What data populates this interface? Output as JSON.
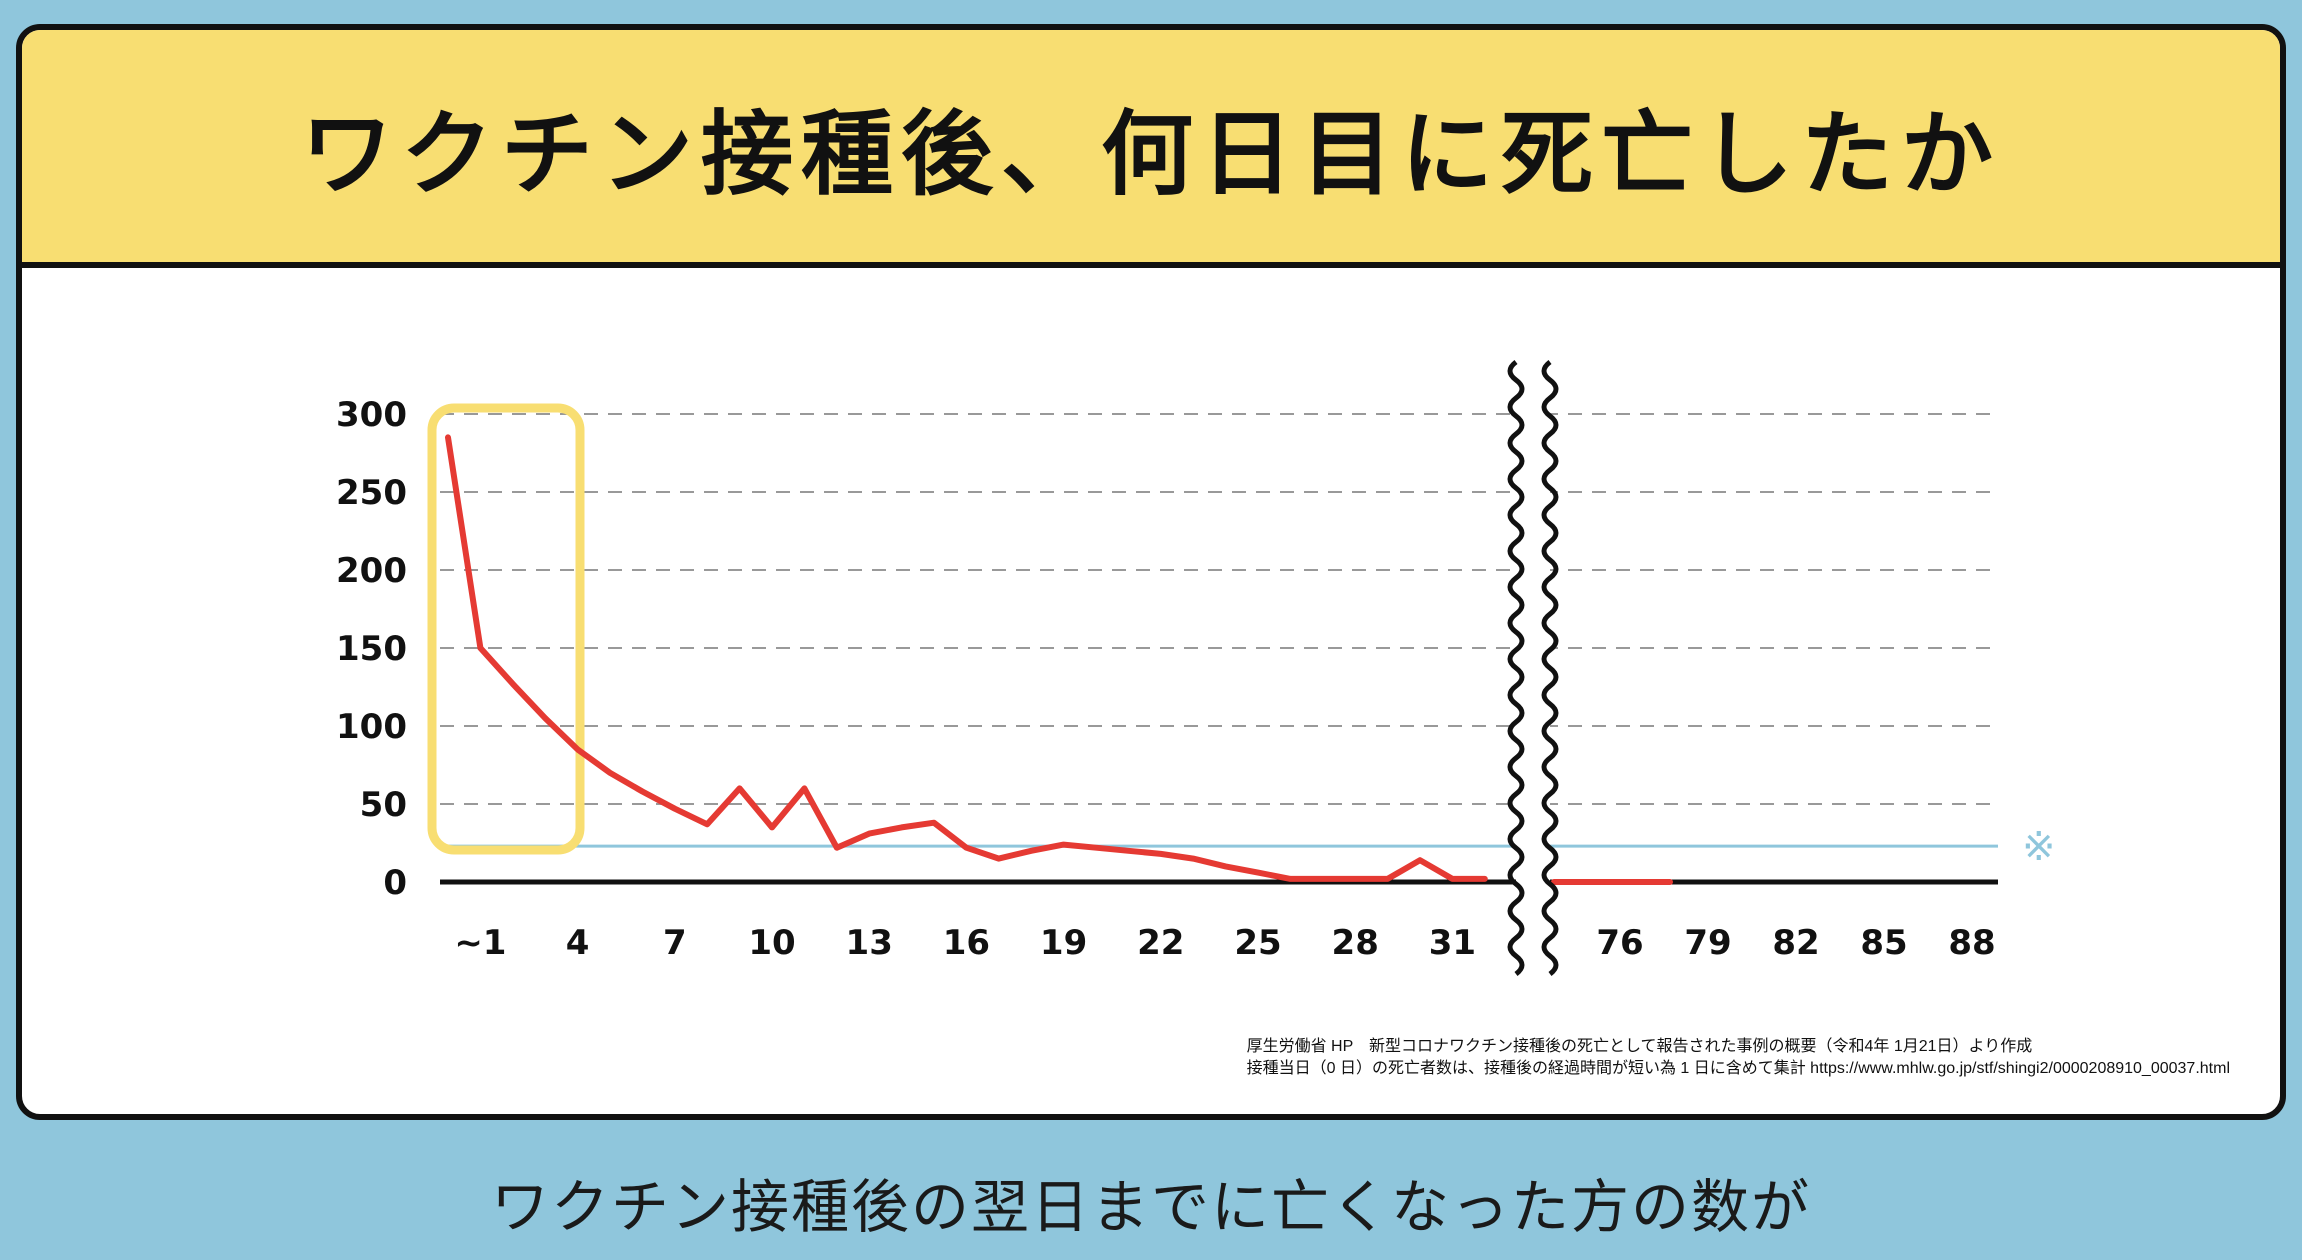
{
  "header": {
    "title": "ワクチン接種後、何日目に死亡したか"
  },
  "footer": {
    "subtitle": "ワクチン接種後の翌日までに亡くなった方の数が"
  },
  "source": {
    "line1": "厚生労働省 HP　新型コロナワクチン接種後の死亡として報告された事例の概要（令和4年 1月21日）より作成",
    "line2": "接種当日（0 日）の死亡者数は、接種後の経過時間が短い為 1 日に含めて集計 https://www.mhlw.go.jp/stf/shingi2/0000208910_00037.html"
  },
  "note_mark": "※",
  "colors": {
    "line": "#e53a33",
    "highlight": "#f8de72",
    "reference_line": "#8fc6dc",
    "grid": "#999999",
    "axis": "#111111"
  },
  "chart_data": {
    "type": "line",
    "title": "ワクチン接種後、何日目に死亡したか",
    "xlabel": "",
    "ylabel": "",
    "ylim": [
      0,
      300
    ],
    "yticks": [
      "0",
      "50",
      "100",
      "150",
      "200",
      "250",
      "300"
    ],
    "xticks_left": [
      "~1",
      "4",
      "7",
      "10",
      "13",
      "16",
      "19",
      "22",
      "25",
      "28",
      "31"
    ],
    "xticks_right": [
      "76",
      "79",
      "82",
      "85",
      "88"
    ],
    "axis_break": "between 32 and 76",
    "grid": "horizontal dashed",
    "reference_line_y": 23,
    "highlight": "~1",
    "series": [
      {
        "segment": "days 0-32",
        "x": [
          0,
          1,
          2,
          3,
          4,
          5,
          6,
          7,
          8,
          9,
          10,
          11,
          12,
          13,
          14,
          15,
          16,
          17,
          18,
          19,
          20,
          21,
          22,
          23,
          24,
          25,
          26,
          27,
          28,
          29,
          30,
          31,
          32
        ],
        "y": [
          285,
          150,
          127,
          105,
          85,
          70,
          58,
          47,
          37,
          60,
          35,
          60,
          22,
          31,
          35,
          38,
          22,
          15,
          20,
          24,
          22,
          20,
          18,
          15,
          10,
          6,
          2,
          2,
          2,
          2,
          14,
          2,
          2
        ]
      },
      {
        "segment": "days 76-80",
        "x": [
          76,
          77,
          78,
          79,
          80
        ],
        "y": [
          0,
          0,
          0,
          0,
          0
        ]
      }
    ]
  }
}
